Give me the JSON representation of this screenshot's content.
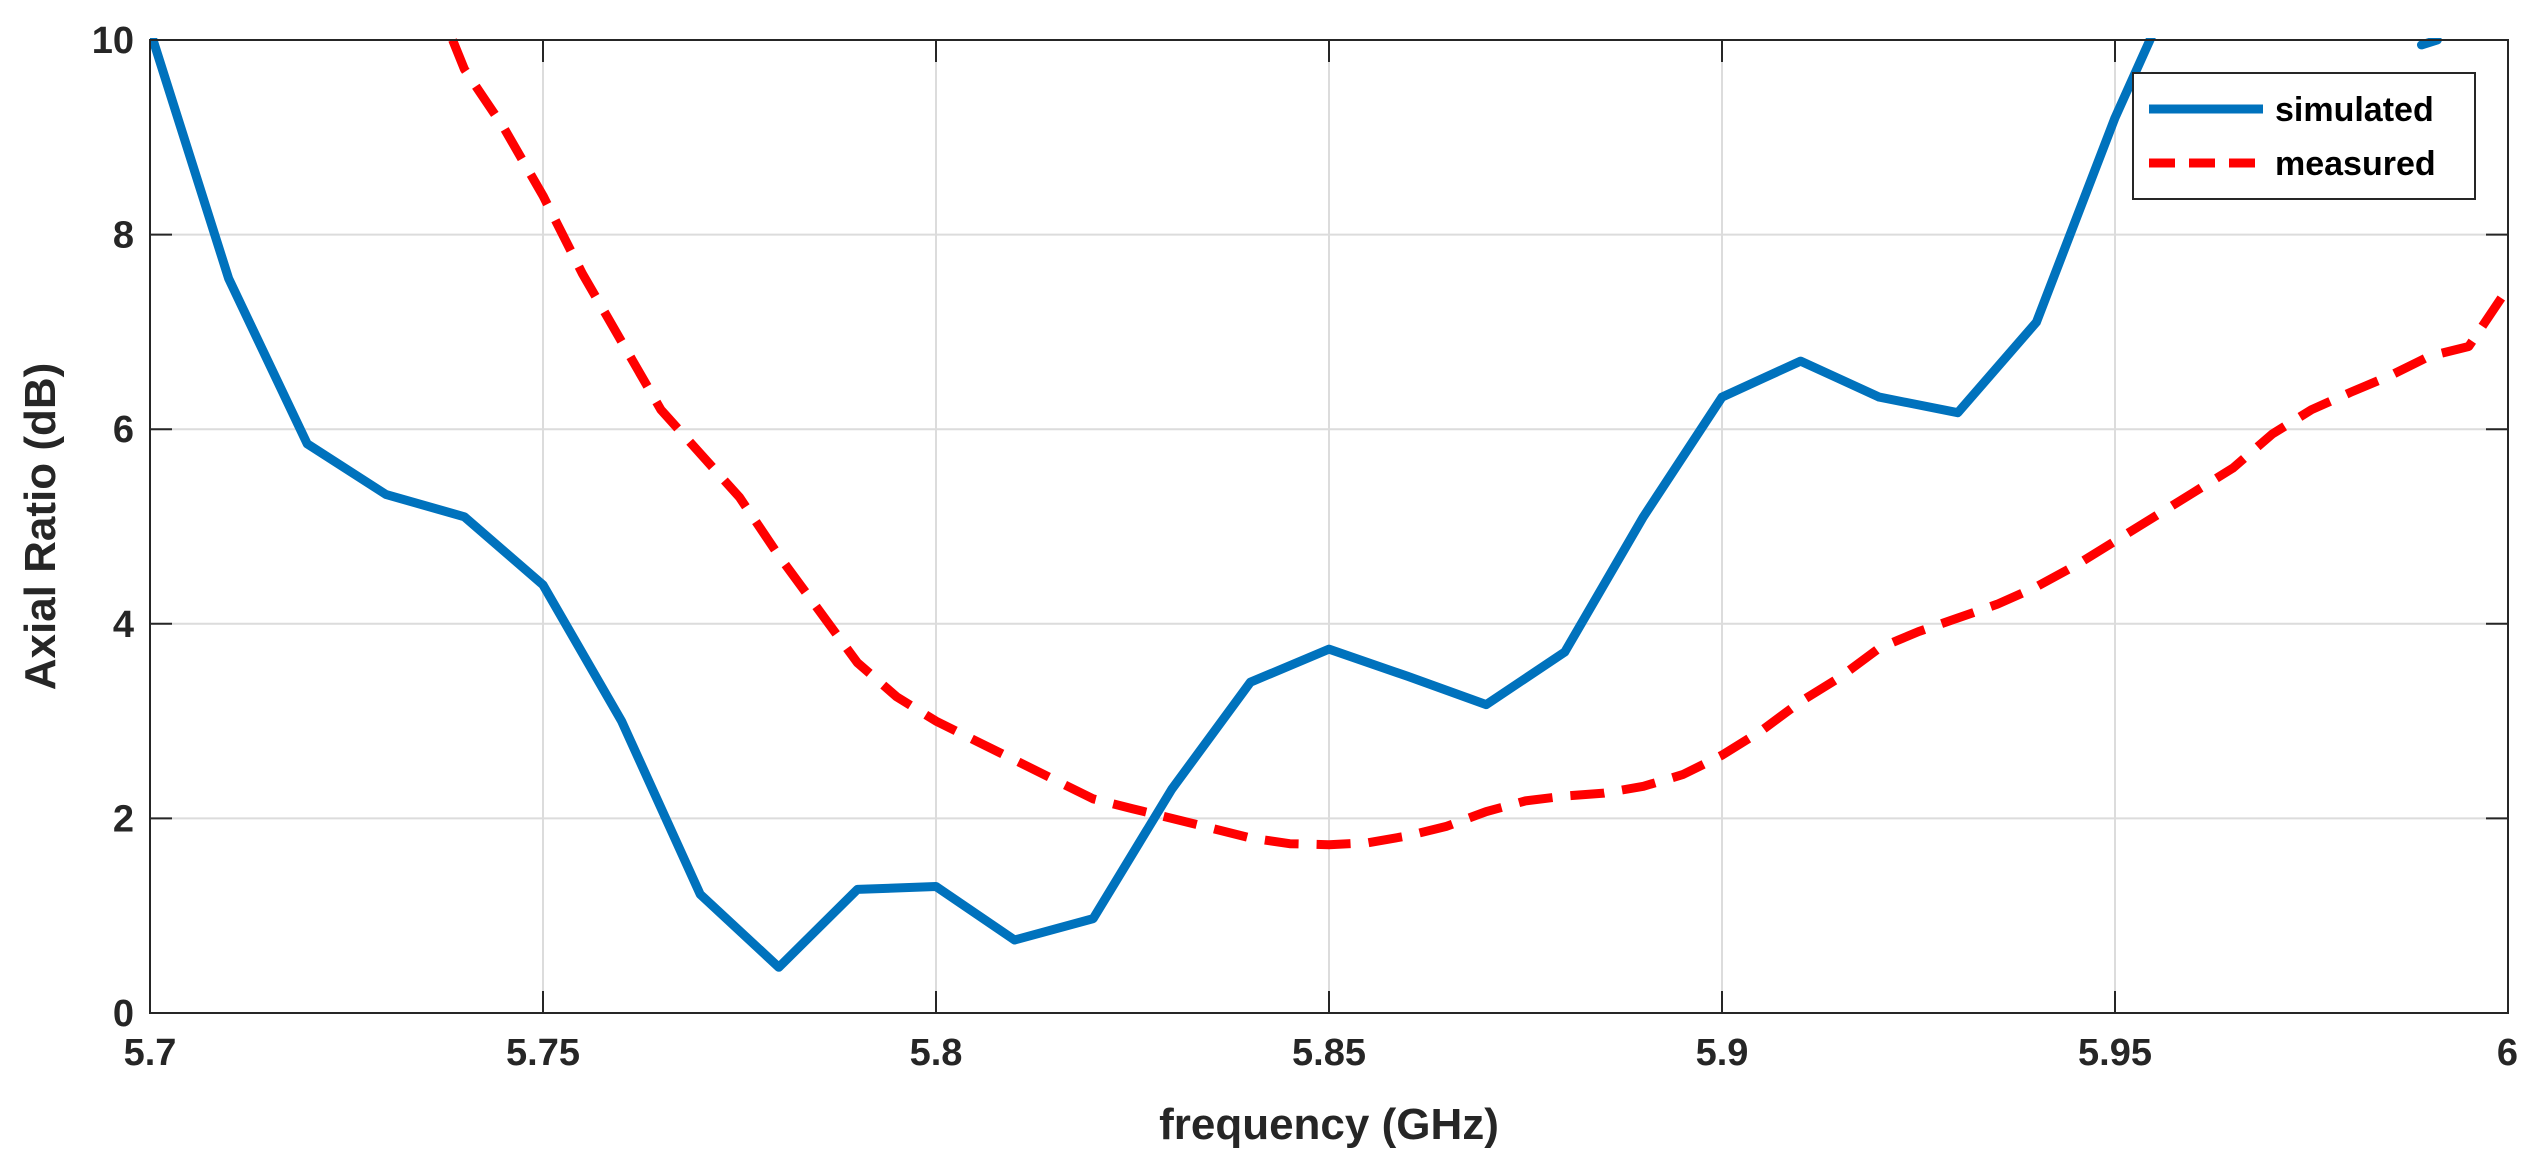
{
  "chart_data": {
    "type": "line",
    "title": "",
    "xlabel": "frequency (GHz)",
    "ylabel": "Axial Ratio (dB)",
    "xlim": [
      5.7,
      6.0
    ],
    "ylim": [
      0,
      10
    ],
    "xticks": [
      5.7,
      5.75,
      5.8,
      5.85,
      5.9,
      5.95,
      6.0
    ],
    "xtick_labels": [
      "5.7",
      "5.75",
      "5.8",
      "5.85",
      "5.9",
      "5.95",
      "6"
    ],
    "yticks": [
      0,
      2,
      4,
      6,
      8,
      10
    ],
    "ytick_labels": [
      "0",
      "2",
      "4",
      "6",
      "8",
      "10"
    ],
    "grid": true,
    "legend_position": "top-right",
    "series": [
      {
        "name": "simulated",
        "color": "#0072BD",
        "style": "solid",
        "x": [
          5.7,
          5.71,
          5.72,
          5.73,
          5.74,
          5.75,
          5.76,
          5.77,
          5.78,
          5.79,
          5.8,
          5.81,
          5.82,
          5.83,
          5.84,
          5.85,
          5.86,
          5.87,
          5.88,
          5.89,
          5.9,
          5.91,
          5.92,
          5.93,
          5.94,
          5.95,
          5.955
        ],
        "y": [
          10.1,
          7.55,
          5.85,
          5.33,
          5.1,
          4.4,
          3.0,
          1.22,
          0.47,
          1.27,
          1.3,
          0.75,
          0.97,
          2.3,
          3.4,
          3.74,
          3.46,
          3.17,
          3.71,
          5.1,
          6.33,
          6.7,
          6.33,
          6.17,
          7.1,
          9.2,
          10.1
        ]
      },
      {
        "name": "measured",
        "color": "#FF0000",
        "style": "dashed",
        "x": [
          5.7385,
          5.74,
          5.745,
          5.75,
          5.755,
          5.76,
          5.765,
          5.77,
          5.775,
          5.78,
          5.785,
          5.79,
          5.795,
          5.8,
          5.805,
          5.81,
          5.815,
          5.82,
          5.825,
          5.83,
          5.835,
          5.84,
          5.845,
          5.85,
          5.855,
          5.86,
          5.865,
          5.87,
          5.875,
          5.88,
          5.885,
          5.89,
          5.895,
          5.9,
          5.905,
          5.91,
          5.915,
          5.92,
          5.925,
          5.93,
          5.935,
          5.94,
          5.945,
          5.95,
          5.955,
          5.96,
          5.965,
          5.97,
          5.975,
          5.98,
          5.985,
          5.99,
          5.995,
          6.0
        ],
        "y": [
          10.0,
          9.7,
          9.1,
          8.4,
          7.6,
          6.9,
          6.2,
          5.75,
          5.3,
          4.7,
          4.15,
          3.6,
          3.25,
          3.0,
          2.8,
          2.6,
          2.4,
          2.2,
          2.1,
          2.0,
          1.9,
          1.8,
          1.74,
          1.73,
          1.75,
          1.82,
          1.92,
          2.07,
          2.18,
          2.23,
          2.26,
          2.33,
          2.45,
          2.65,
          2.9,
          3.2,
          3.45,
          3.75,
          3.92,
          4.06,
          4.2,
          4.38,
          4.6,
          4.85,
          5.1,
          5.35,
          5.6,
          5.95,
          6.2,
          6.38,
          6.55,
          6.75,
          6.85,
          7.45
        ]
      }
    ],
    "extra_marks": [
      {
        "name": "simulated-reentry",
        "x": [
          5.989,
          5.991
        ],
        "y": [
          9.95,
          10.0
        ]
      }
    ]
  }
}
